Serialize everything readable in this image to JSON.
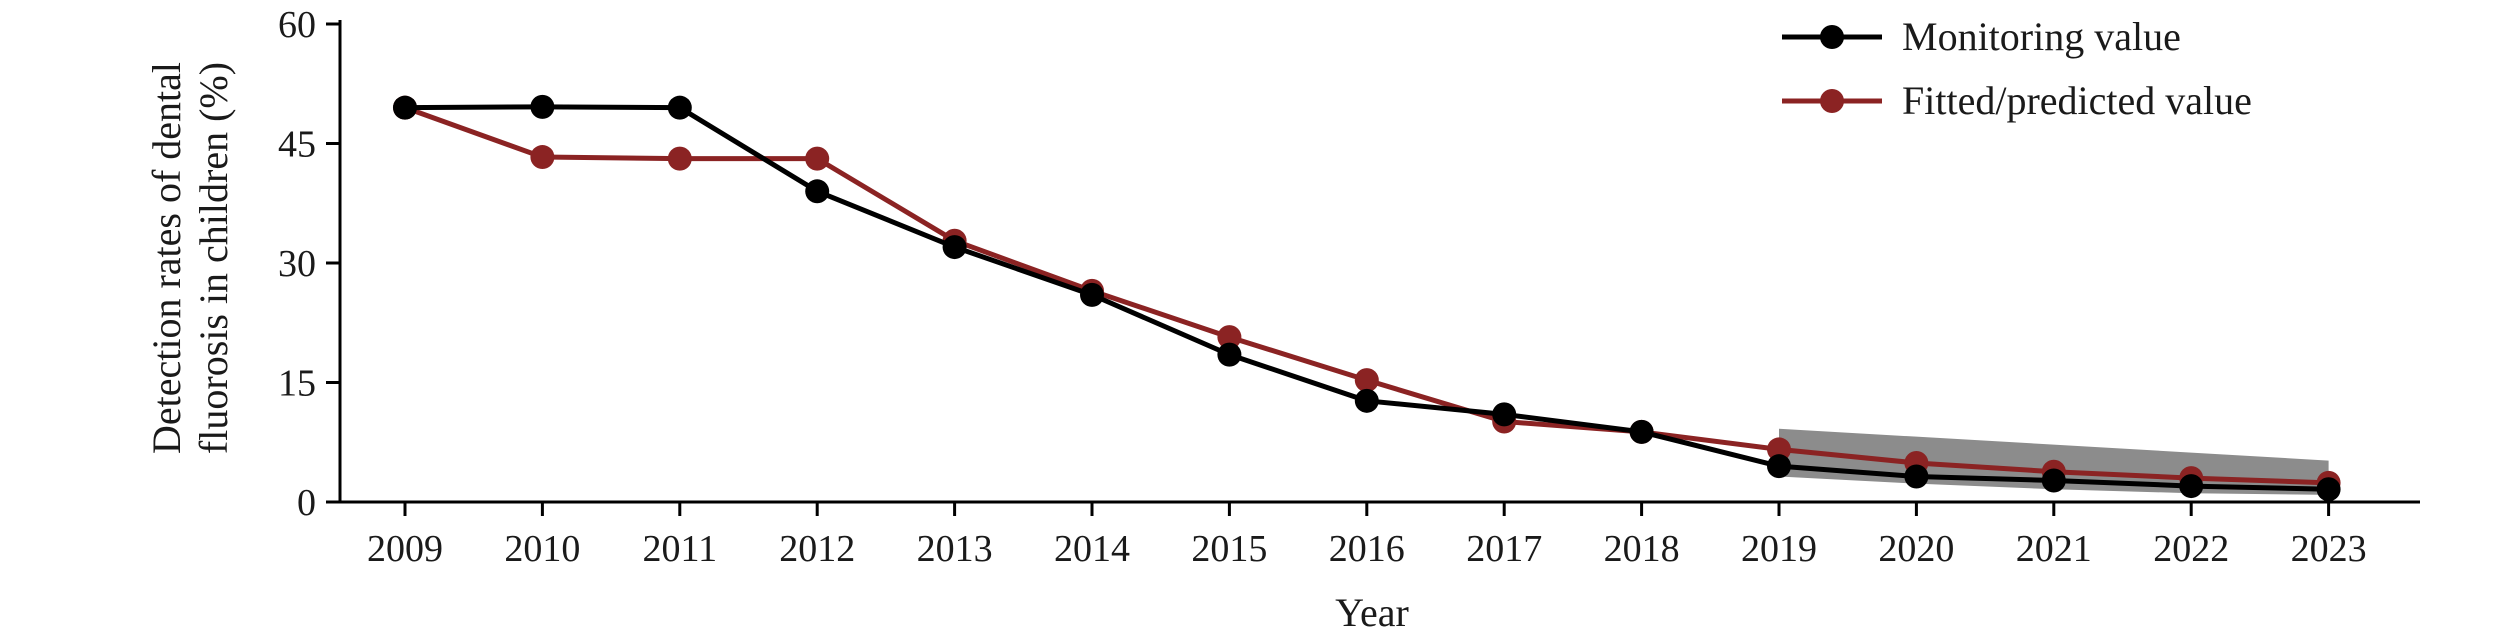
{
  "chart_data": {
    "type": "line",
    "title": "",
    "xlabel": "Year",
    "ylabel_lines": [
      "Detection rates of dental",
      "fluorosis in children (%)"
    ],
    "x": [
      "2009",
      "2010",
      "2011",
      "2012",
      "2013",
      "2014",
      "2015",
      "2016",
      "2017",
      "2018",
      "2019",
      "2020",
      "2021",
      "2022",
      "2023"
    ],
    "ylim": [
      0,
      60
    ],
    "yticks": [
      "0",
      "15",
      "30",
      "45",
      "60"
    ],
    "grid": false,
    "legend_position": "top-right",
    "series": [
      {
        "name": "Monitoring value",
        "color": "#000000",
        "values": [
          49.5,
          49.6,
          49.5,
          39.0,
          32.0,
          26.0,
          18.5,
          12.7,
          11.0,
          8.8,
          4.5,
          3.2,
          2.7,
          2.0,
          1.6
        ]
      },
      {
        "name": "Fitted/predicted value",
        "color": "#8b2323",
        "values": [
          49.5,
          43.3,
          43.1,
          43.1,
          32.8,
          26.5,
          20.7,
          15.3,
          10.1,
          8.8,
          6.6,
          4.9,
          3.8,
          3.0,
          2.4
        ]
      }
    ],
    "confidence_band": {
      "color": "#8c8c8c",
      "x": [
        "2019",
        "2020",
        "2021",
        "2022",
        "2023"
      ],
      "upper": [
        9.2,
        8.2,
        7.2,
        6.2,
        5.2
      ],
      "lower": [
        3.2,
        2.3,
        1.6,
        1.1,
        0.9
      ]
    }
  }
}
